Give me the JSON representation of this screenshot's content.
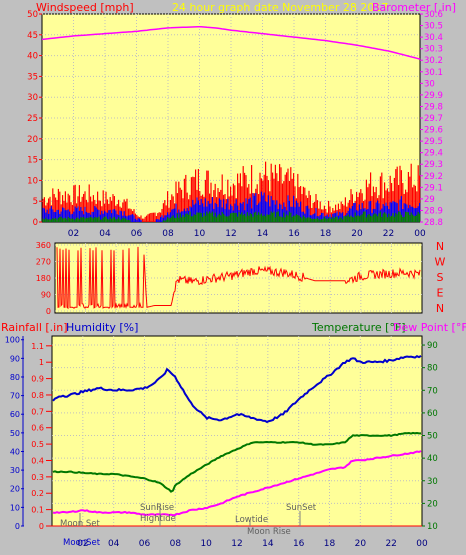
{
  "header": {
    "windspeed_label": "Windspeed [mph]",
    "graph_title": "24 hour graph date   November 28 2017",
    "barometer_label": "Barometer [.in]"
  },
  "colors": {
    "panel_bg": "#ffff99",
    "window_bg": "#c0c0c0",
    "wind_gust": "#ff0000",
    "wind_avg": "#0000ff",
    "wind_low": "#008000",
    "barometer": "#ff00ff",
    "direction": "#ff0000",
    "humidity": "#0000cc",
    "temperature": "#007700",
    "dew_point": "#ff00ff",
    "rain": "#ff0000",
    "title_yellow": "#ffff00"
  },
  "lower_labels": {
    "rainfall": "Rainfall [.in]",
    "humidity": "Humidity [%]",
    "temperature": "Temperature [°F]",
    "dew_point": "Dew Point [°F]"
  },
  "compass": [
    "N",
    "W",
    "S",
    "E",
    "N"
  ],
  "annotations": {
    "moon_set_top": "Moon Set",
    "sunrise": "SunRise",
    "hightide": "Hightide",
    "lowtide": "Lowtide",
    "sunset": "SunSet",
    "moon_rise": "Moon Rise",
    "moon_set_bottom": "MoonSet"
  },
  "chart_data": [
    {
      "type": "line",
      "title": "24 hour graph date   November 28 2017",
      "xlabel": "",
      "x_ticks": [
        "02",
        "04",
        "06",
        "08",
        "10",
        "12",
        "14",
        "16",
        "18",
        "20",
        "22",
        "00"
      ],
      "y_left_label": "Windspeed [mph]",
      "y_left_ticks": [
        0,
        5,
        10,
        15,
        20,
        25,
        30,
        35,
        40,
        45,
        50
      ],
      "ylim_left": [
        0,
        50
      ],
      "y_right_label": "Barometer [.in]",
      "y_right_ticks": [
        "28.8",
        "28.9",
        "29",
        "29.1",
        "29.2",
        "29.3",
        "29.4",
        "29.5",
        "29.6",
        "29.7",
        "29.8",
        "29.9",
        "30",
        "30.1",
        "30.2",
        "30.3",
        "30.4",
        "30.5",
        "30.6"
      ],
      "ylim_right": [
        28.8,
        30.6
      ],
      "series": [
        {
          "axis": "right",
          "x": [
            0,
            2,
            4,
            6,
            8,
            10,
            11,
            12,
            14,
            16,
            18,
            20,
            22,
            24
          ],
          "values": [
            30.38,
            30.41,
            30.43,
            30.45,
            30.48,
            30.49,
            30.48,
            30.46,
            30.43,
            30.4,
            30.37,
            30.33,
            30.28,
            30.21
          ]
        },
        {
          "axis": "left",
          "style": "bars",
          "x": [
            0,
            1,
            2,
            3,
            4,
            5,
            5.5,
            6,
            6.5,
            7,
            7.5,
            8,
            9,
            10,
            11,
            12,
            13,
            14,
            15,
            16,
            17,
            18,
            19,
            20,
            21,
            22,
            23,
            24
          ],
          "values": [
            6,
            7,
            7,
            7,
            6,
            6,
            4,
            2,
            1,
            2,
            3,
            6,
            9,
            11,
            10,
            10,
            11,
            12,
            11,
            10,
            6,
            4,
            4,
            8,
            10,
            10,
            11,
            11
          ]
        },
        {
          "axis": "left",
          "style": "bars",
          "x": [
            0,
            1,
            2,
            3,
            4,
            5,
            5.5,
            6,
            6.5,
            7,
            7.5,
            8,
            9,
            10,
            11,
            12,
            13,
            14,
            15,
            16,
            17,
            18,
            19,
            20,
            21,
            22,
            23,
            24
          ],
          "values": [
            3,
            3,
            3,
            3,
            3,
            3,
            2,
            1,
            0,
            0,
            1,
            3,
            4,
            5,
            5,
            5,
            5,
            6,
            5,
            5,
            3,
            2,
            2,
            4,
            4,
            4,
            5,
            5
          ]
        },
        {
          "axis": "left",
          "style": "bars",
          "x": [
            0,
            1,
            2,
            3,
            4,
            5,
            5.5,
            6,
            6.5,
            7,
            7.5,
            8,
            9,
            10,
            11,
            12,
            13,
            14,
            15,
            16,
            17,
            18,
            19,
            20,
            21,
            22,
            23,
            24
          ],
          "values": [
            1,
            1,
            1,
            1,
            1,
            1,
            0.5,
            0,
            0,
            0,
            0,
            1,
            2,
            2,
            2,
            2,
            2,
            2,
            2,
            2,
            1,
            1,
            1,
            2,
            2,
            2,
            2,
            2
          ]
        }
      ]
    },
    {
      "type": "line",
      "title": "",
      "xlabel": "",
      "y_ticks": [
        0,
        90,
        180,
        270,
        360
      ],
      "ylim": [
        0,
        360
      ],
      "series": [
        {
          "x": [
            0.1,
            0.3,
            0.5,
            1.0,
            1.5,
            2.0,
            2.5,
            3.0,
            3.5,
            4.0,
            4.5,
            5.0,
            5.5,
            5.8,
            6.0,
            6.5,
            7.0,
            7.6,
            7.8,
            8.0,
            9.0,
            10.0,
            11.0,
            12.0,
            13.0,
            14.0,
            15.0,
            16.0,
            17.0,
            18.0,
            19.0,
            20.0,
            21.0,
            22.0,
            23.0,
            24.0
          ],
          "values": [
            60,
            350,
            20,
            350,
            30,
            340,
            20,
            350,
            10,
            340,
            20,
            350,
            20,
            340,
            20,
            30,
            30,
            30,
            110,
            170,
            160,
            175,
            185,
            200,
            220,
            215,
            210,
            190,
            165,
            165,
            165,
            190,
            200,
            205,
            210,
            200
          ]
        }
      ]
    },
    {
      "type": "line",
      "title": "",
      "xlabel": "",
      "x_ticks": [
        "02",
        "04",
        "06",
        "08",
        "10",
        "12",
        "14",
        "16",
        "18",
        "20",
        "22",
        "00"
      ],
      "y_left_ticks": [
        "0",
        "0.1",
        "0.2",
        "0.3",
        "0.4",
        "0.5",
        "0.6",
        "0.7",
        "0.8",
        "0.9",
        "1",
        "1.1"
      ],
      "ylim_rain": [
        0,
        1.16
      ],
      "y_humidity_ticks": [
        0,
        10,
        20,
        30,
        40,
        50,
        60,
        70,
        80,
        90,
        100
      ],
      "ylim_humidity": [
        0,
        102
      ],
      "y_right_ticks": [
        10,
        20,
        30,
        40,
        50,
        60,
        70,
        80,
        90
      ],
      "ylim_temperature": [
        10,
        94
      ],
      "series": [
        {
          "name": "Humidity [%]",
          "axis": "humidity",
          "x": [
            0,
            0.5,
            1,
            2,
            3,
            4,
            5,
            6,
            6.5,
            7,
            7.5,
            8,
            9,
            10,
            11,
            12,
            13,
            14,
            15,
            16,
            17,
            18,
            19,
            19.5,
            20,
            21,
            22,
            23,
            24
          ],
          "values": [
            67,
            70,
            70,
            72,
            74,
            73,
            73,
            74,
            76,
            79,
            84,
            80,
            66,
            58,
            57,
            60,
            58,
            56,
            60,
            68,
            75,
            81,
            88,
            90,
            88,
            88,
            89,
            91,
            91
          ]
        },
        {
          "name": "Temperature [°F]",
          "axis": "temperature",
          "x": [
            0,
            1,
            2,
            3,
            4,
            5,
            6,
            7,
            7.8,
            8,
            9,
            10,
            11,
            12,
            13,
            14,
            15,
            16,
            17,
            18,
            19,
            19.5,
            20,
            21,
            22,
            23,
            24
          ],
          "values": [
            34,
            34,
            33.5,
            33,
            33,
            32,
            31,
            29,
            25,
            28,
            33,
            37,
            41,
            44,
            47,
            47,
            47,
            47,
            46,
            46,
            47,
            50,
            50,
            50,
            50,
            51,
            51
          ]
        },
        {
          "name": "Dew Point [°F]",
          "axis": "temperature",
          "x": [
            0,
            1,
            2,
            3,
            4,
            5,
            6,
            7,
            8,
            9,
            10,
            11,
            12,
            13,
            14,
            15,
            16,
            17,
            18,
            19,
            19.5,
            20,
            21,
            22,
            23,
            24
          ],
          "values": [
            16,
            16,
            17,
            16,
            16,
            16,
            15,
            15,
            15,
            17,
            18,
            20,
            23,
            25,
            27,
            29,
            31,
            33,
            35,
            36,
            39,
            39,
            40,
            41,
            42,
            43
          ]
        },
        {
          "name": "Rainfall [.in]",
          "axis": "rain",
          "x": [
            0,
            24
          ],
          "values": [
            0,
            0
          ]
        }
      ]
    }
  ]
}
